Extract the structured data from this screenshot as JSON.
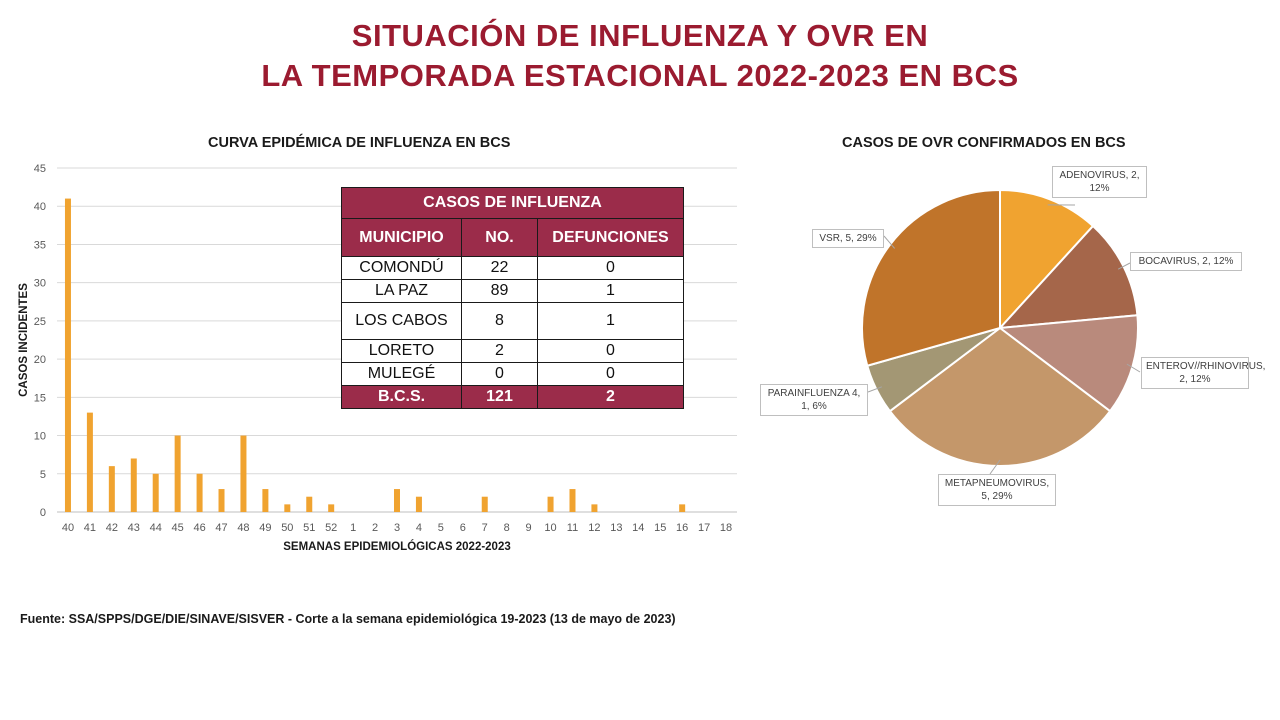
{
  "title_line1": "SITUACIÓN DE INFLUENZA Y OVR EN",
  "title_line2": "LA TEMPORADA ESTACIONAL 2022-2023 EN BCS",
  "source": "Fuente: SSA/SPPS/DGE/DIE/SINAVE/SISVER   - Corte a la semana epidemiológica 19-2023 (13 de mayo de 2023)",
  "table": {
    "title": "CASOS DE INFLUENZA",
    "headers": [
      "MUNICIPIO",
      "NO.",
      "DEFUNCIONES"
    ],
    "rows": [
      [
        "COMONDÚ",
        "22",
        "0"
      ],
      [
        "LA PAZ",
        "89",
        "1"
      ],
      [
        "LOS CABOS",
        "8",
        "1"
      ],
      [
        "LORETO",
        "2",
        "0"
      ],
      [
        "MULEGÉ",
        "0",
        "0"
      ]
    ],
    "total": [
      "B.C.S.",
      "121",
      "2"
    ]
  },
  "chart_data": [
    {
      "type": "bar",
      "title": "CURVA EPIDÉMICA DE INFLUENZA EN BCS",
      "xlabel": "SEMANAS  EPIDEMIOLÓGICAS  2022-2023",
      "ylabel": "CASOS  INCIDENTES",
      "ylim": [
        0,
        45
      ],
      "yticks": [
        0,
        5,
        10,
        15,
        20,
        25,
        30,
        35,
        40,
        45
      ],
      "grid": true,
      "bar_color": "#f0a330",
      "categories": [
        "40",
        "41",
        "42",
        "43",
        "44",
        "45",
        "46",
        "47",
        "48",
        "49",
        "50",
        "51",
        "52",
        "1",
        "2",
        "3",
        "4",
        "5",
        "6",
        "7",
        "8",
        "9",
        "10",
        "11",
        "12",
        "13",
        "14",
        "15",
        "16",
        "17",
        "18"
      ],
      "values": [
        41,
        13,
        6,
        7,
        5,
        10,
        5,
        3,
        10,
        3,
        1,
        2,
        1,
        0,
        0,
        3,
        2,
        0,
        0,
        2,
        0,
        0,
        2,
        3,
        1,
        0,
        0,
        0,
        1,
        0,
        0
      ]
    },
    {
      "type": "pie",
      "title": "CASOS DE OVR CONFIRMADOS EN BCS",
      "slices": [
        {
          "name": "ADENOVIRUS",
          "value": 2,
          "label": "ADENOVIRUS,  2, 12%",
          "color": "#f0a330"
        },
        {
          "name": "BOCAVIRUS",
          "value": 2,
          "label": "BOCAVIRUS,  2, 12%",
          "color": "#a5664a"
        },
        {
          "name": "ENTEROV//RHINOVIRUS",
          "value": 2,
          "label": "ENTEROV//RHINOVIRUS, 2, 12%",
          "color": "#b98a7c"
        },
        {
          "name": "METAPNEUMOVIRUS",
          "value": 5,
          "label": "METAPNEUMOVIRUS, 5, 29%",
          "color": "#c4976a"
        },
        {
          "name": "PARAINFLUENZA 4",
          "value": 1,
          "label": "PARAINFLUENZA 4, 1, 6%",
          "color": "#a39774"
        },
        {
          "name": "VSR",
          "value": 5,
          "label": "VSR, 5, 29%",
          "color": "#c0742a"
        }
      ]
    }
  ]
}
